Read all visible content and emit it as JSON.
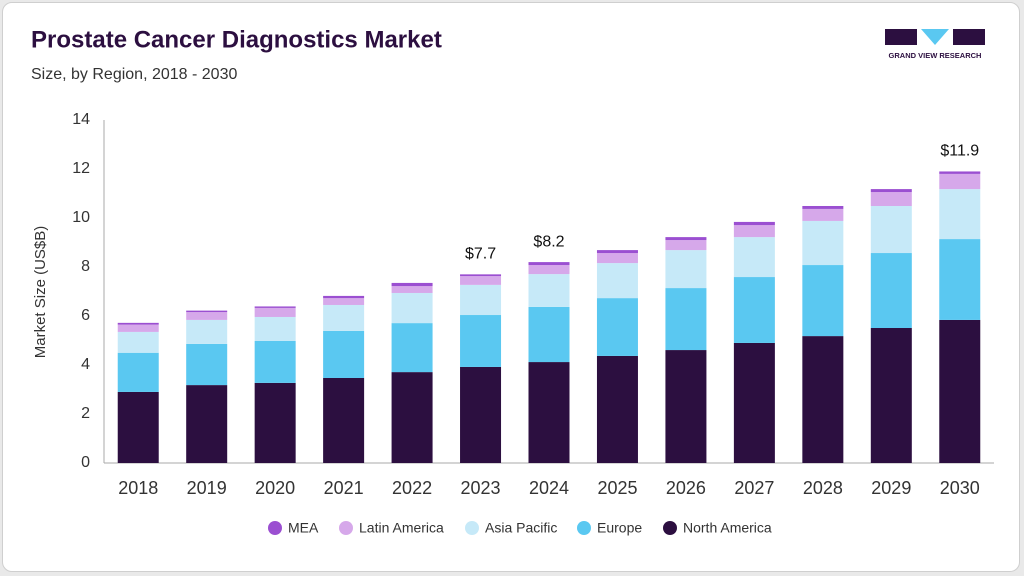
{
  "brand": "GRAND VIEW RESEARCH",
  "chart_data": {
    "type": "stacked_bar",
    "title": "Prostate Cancer Diagnostics Market",
    "subtitle": "Size, by Region, 2018 - 2030",
    "y_label": "Market Size (US$B)",
    "categories": [
      "2018",
      "2019",
      "2020",
      "2021",
      "2022",
      "2023",
      "2024",
      "2025",
      "2026",
      "2027",
      "2028",
      "2029",
      "2030"
    ],
    "series": [
      {
        "name": "MEA",
        "color": "#9b4fd1",
        "values": [
          0.07,
          0.06,
          0.06,
          0.09,
          0.13,
          0.07,
          0.12,
          0.12,
          0.12,
          0.13,
          0.12,
          0.12,
          0.1
        ]
      },
      {
        "name": "Latin America",
        "color": "#d6a8ea",
        "values": [
          0.3,
          0.32,
          0.37,
          0.28,
          0.28,
          0.36,
          0.37,
          0.41,
          0.41,
          0.49,
          0.49,
          0.57,
          0.62
        ]
      },
      {
        "name": "Asia Pacific",
        "color": "#c6e9f8",
        "values": [
          0.85,
          0.98,
          0.98,
          1.06,
          1.23,
          1.23,
          1.34,
          1.43,
          1.55,
          1.63,
          1.8,
          1.92,
          2.04
        ]
      },
      {
        "name": "Europe",
        "color": "#5ac8f1",
        "values": [
          1.6,
          1.68,
          1.71,
          1.92,
          2.0,
          2.12,
          2.25,
          2.36,
          2.53,
          2.69,
          2.9,
          3.06,
          3.3
        ]
      },
      {
        "name": "North America",
        "color": "#2c0f40",
        "values": [
          2.9,
          3.18,
          3.27,
          3.47,
          3.71,
          3.92,
          4.12,
          4.37,
          4.61,
          4.9,
          5.18,
          5.51,
          5.84
        ]
      }
    ],
    "annotations": [
      {
        "x": "2023",
        "text": "$7.7"
      },
      {
        "x": "2024",
        "text": "$8.2"
      },
      {
        "x": "2030",
        "text": "$11.9"
      }
    ],
    "ylim": [
      0,
      14
    ],
    "yticks": [
      0,
      2,
      4,
      6,
      8,
      10,
      12,
      14
    ],
    "grid": false,
    "legend": "bottom"
  }
}
